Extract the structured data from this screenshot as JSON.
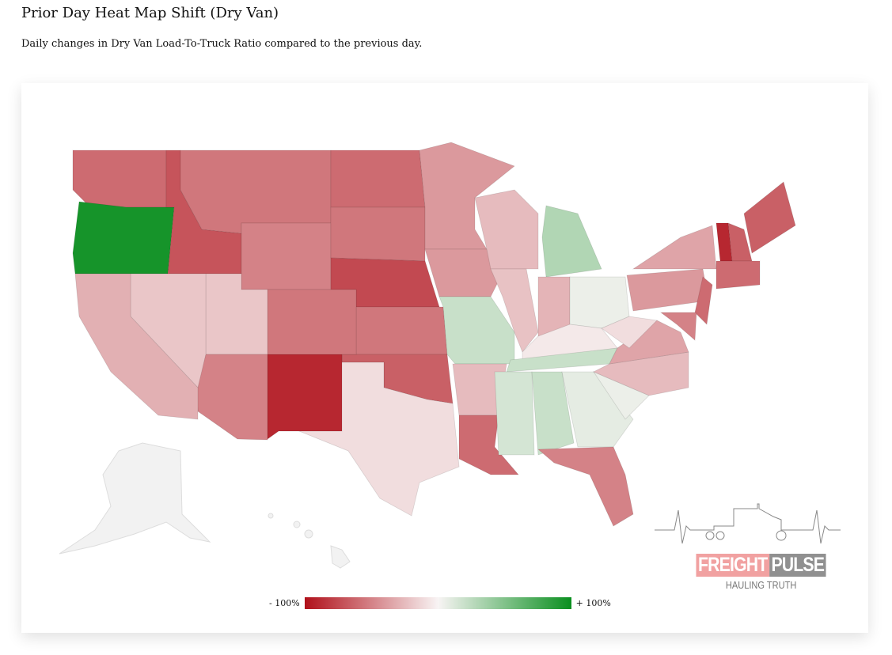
{
  "title": "Prior Day Heat Map Shift (Dry Van)",
  "subtitle": "Daily changes in Dry Van Load-To-Truck Ratio compared to the previous day.",
  "legend": {
    "min_label": "- 100%",
    "max_label": "+ 100%",
    "neg_color": "#b0101a",
    "pos_color": "#0a8f1f",
    "neutral_color": "#f8f4f4"
  },
  "logo": {
    "word1": "FREIGHT",
    "word2": "PULSE",
    "tagline": "HAULING TRUTH"
  },
  "states": {
    "WA": -0.6,
    "OR": 0.95,
    "ID": -0.7,
    "MT": -0.55,
    "WY": -0.5,
    "ND": -0.6,
    "SD": -0.55,
    "NE": -0.75,
    "KS": -0.55,
    "OK": -0.65,
    "TX": -0.1,
    "NM": -0.9,
    "CO": -0.55,
    "UT": -0.2,
    "AZ": -0.5,
    "NV": -0.2,
    "CA": -0.3,
    "MN": -0.4,
    "IA": -0.4,
    "MO": 0.2,
    "AR": -0.25,
    "LA": -0.6,
    "WI": -0.25,
    "IL": -0.22,
    "MI": 0.3,
    "IN": -0.28,
    "OH": 0.05,
    "KY": -0.05,
    "TN": 0.2,
    "MS": 0.15,
    "AL": 0.2,
    "GA": 0.08,
    "FL": -0.5,
    "SC": 0.05,
    "NC": -0.25,
    "VA": -0.35,
    "WV": -0.1,
    "PA": -0.4,
    "NY": -0.35,
    "NJ": -0.6,
    "MD": -0.5,
    "VT": -0.9,
    "NH": -0.65,
    "ME": -0.65,
    "MA": -0.6
  }
}
